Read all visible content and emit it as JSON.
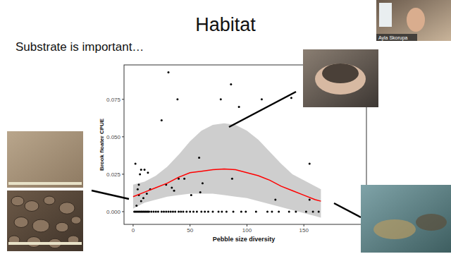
{
  "slide": {
    "title": "Habitat",
    "subtitle": "Substrate is important…",
    "speaker": "Ayla Skorupa"
  },
  "chart_data": {
    "type": "scatter",
    "x_label": "Pebble size diversity",
    "y_label": "Brook floater CPUE",
    "xlim": [
      -8,
      205
    ],
    "ylim": [
      -0.0085,
      0.098
    ],
    "xticks": [
      0,
      50,
      100,
      150
    ],
    "yticks": [
      {
        "value": 0,
        "label": "0.000"
      },
      {
        "value": 0.025,
        "label": "0.025"
      },
      {
        "value": 0.05,
        "label": "0.050"
      },
      {
        "value": 0.075,
        "label": "0.075"
      }
    ],
    "grid": false,
    "series": [
      {
        "type": "scatter",
        "color": "#000000",
        "marker": "circle",
        "x": [
          31,
          39,
          77,
          86,
          93,
          113,
          139,
          25,
          58,
          40,
          45,
          2,
          7,
          10,
          13,
          6,
          5,
          15,
          12,
          9,
          5,
          7,
          3,
          4,
          34,
          29,
          36,
          51,
          59,
          61,
          87,
          125,
          155,
          155,
          1,
          2,
          3,
          4,
          5,
          6,
          7,
          8,
          9,
          10,
          11,
          12,
          13,
          14,
          16,
          18,
          20,
          22,
          25,
          27,
          29,
          31,
          33,
          35,
          37,
          40,
          42,
          44,
          47,
          50,
          53,
          56,
          60,
          63,
          66,
          70,
          75,
          78,
          82,
          88,
          95,
          99,
          108,
          118,
          122,
          128,
          137,
          143,
          152,
          158,
          163
        ],
        "values": [
          0.093,
          0.075,
          0.075,
          0.085,
          0.07,
          0.075,
          0.076,
          0.061,
          0.036,
          0.022,
          0.022,
          0.032,
          0.028,
          0.028,
          0.026,
          0.025,
          0.018,
          0.015,
          0.012,
          0.009,
          0.011,
          0.007,
          0.004,
          0.015,
          0.016,
          0.018,
          0.014,
          0.011,
          0.013,
          0.019,
          0.022,
          0.008,
          0.032,
          0.008,
          0,
          0,
          0,
          0,
          0,
          0,
          0,
          0,
          0,
          0,
          0,
          0,
          0,
          0,
          0,
          0,
          0,
          0,
          0,
          0,
          0,
          0,
          0,
          0,
          0,
          0,
          0,
          0,
          0,
          0,
          0,
          0,
          0,
          0,
          0,
          0,
          0,
          0,
          0,
          0,
          0,
          0,
          0,
          0,
          0,
          0,
          0,
          0,
          0,
          0,
          0
        ]
      },
      {
        "type": "line",
        "color": "#ff0000",
        "line_style": "solid",
        "x": [
          0,
          10,
          20,
          30,
          40,
          50,
          60,
          70,
          80,
          90,
          100,
          110,
          120,
          130,
          140,
          150,
          160,
          165
        ],
        "values": [
          0.01,
          0.013,
          0.016,
          0.019,
          0.023,
          0.026,
          0.027,
          0.028,
          0.0285,
          0.028,
          0.026,
          0.024,
          0.021,
          0.017,
          0.014,
          0.011,
          0.008,
          0.007
        ]
      }
    ],
    "band": {
      "color": "#bebebe",
      "x": [
        0,
        10,
        20,
        30,
        40,
        50,
        60,
        70,
        80,
        90,
        100,
        110,
        120,
        130,
        140,
        150,
        160,
        165
      ],
      "lower": [
        0.002,
        0.006,
        0.008,
        0.01,
        0.011,
        0.012,
        0.012,
        0.012,
        0.011,
        0.01,
        0.009,
        0.007,
        0.005,
        0.003,
        0.001,
        -0.001,
        -0.003,
        -0.004
      ],
      "upper": [
        0.018,
        0.02,
        0.024,
        0.03,
        0.038,
        0.047,
        0.054,
        0.058,
        0.059,
        0.058,
        0.054,
        0.048,
        0.04,
        0.032,
        0.025,
        0.021,
        0.017,
        0.015
      ]
    }
  }
}
